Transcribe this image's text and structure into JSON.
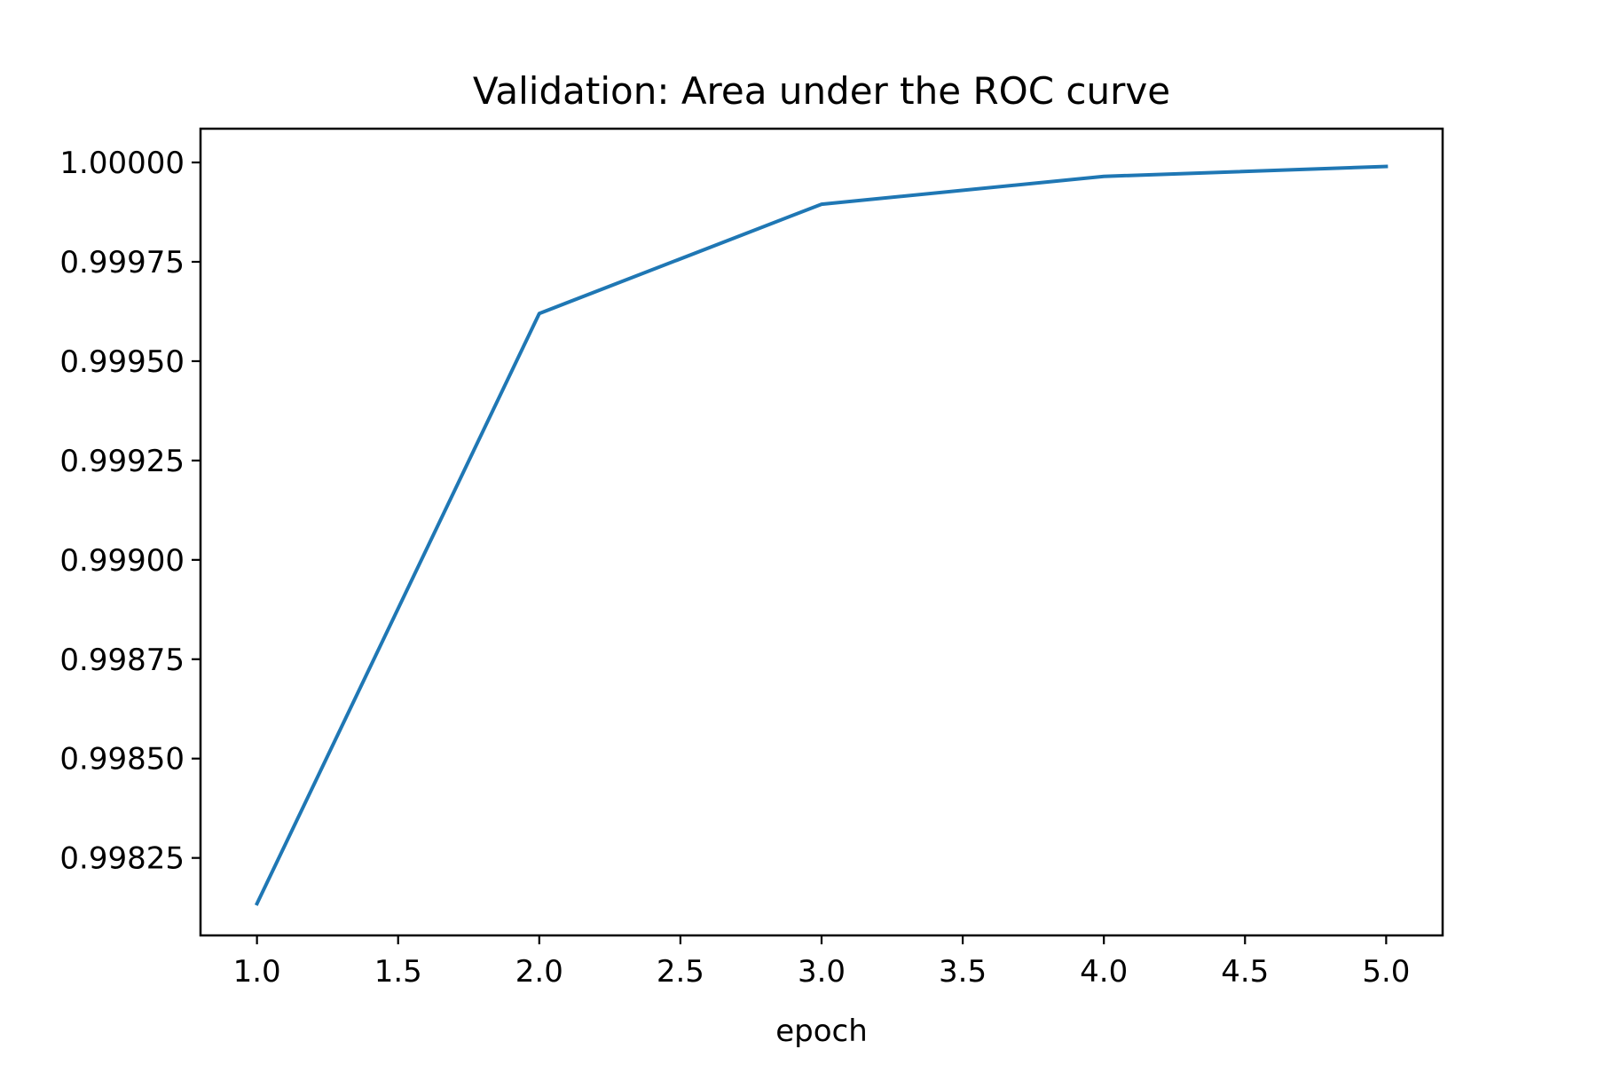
{
  "chart_data": {
    "type": "line",
    "title": "Validation: Area under the ROC curve",
    "xlabel": "epoch",
    "ylabel": "",
    "xlim": [
      0.8,
      5.2
    ],
    "ylim": [
      0.998055,
      1.000085
    ],
    "xticks": [
      "1.0",
      "1.5",
      "2.0",
      "2.5",
      "3.0",
      "3.5",
      "4.0",
      "4.5",
      "5.0"
    ],
    "yticks": [
      "0.99825",
      "0.99850",
      "0.99875",
      "0.99900",
      "0.99925",
      "0.99950",
      "0.99975",
      "1.00000"
    ],
    "grid": false,
    "series": [
      {
        "color": "#1f77b4",
        "x": [
          1,
          2,
          3,
          4,
          5
        ],
        "y": [
          0.998135,
          0.99962,
          0.999895,
          0.999965,
          0.99999
        ]
      }
    ]
  }
}
